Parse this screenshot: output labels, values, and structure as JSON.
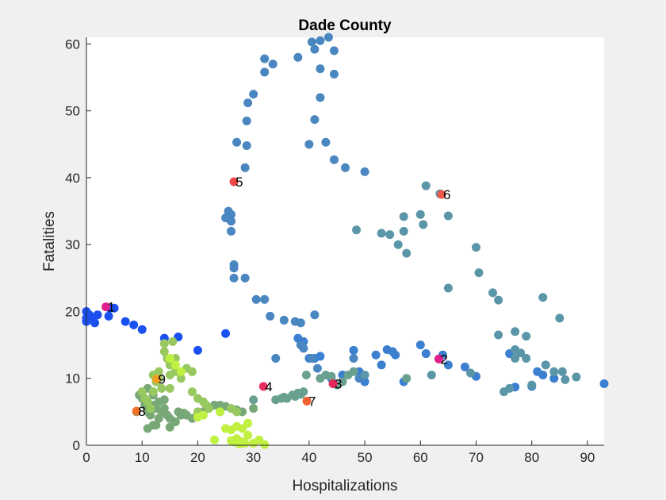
{
  "chart_data": {
    "type": "scatter",
    "title": "Dade County",
    "xlabel": "Hospitalizations",
    "ylabel": "Fatalities",
    "xlim": [
      0,
      93
    ],
    "ylim": [
      0,
      61
    ],
    "xticks": [
      0,
      10,
      20,
      30,
      40,
      50,
      60,
      70,
      80,
      90
    ],
    "yticks": [
      0,
      10,
      20,
      30,
      40,
      50,
      60
    ],
    "grid": false,
    "series": [
      {
        "color": "#1a4ff0",
        "points": [
          [
            0,
            20
          ],
          [
            0,
            19
          ],
          [
            0,
            18.5
          ],
          [
            0.5,
            19.5
          ],
          [
            1,
            19
          ],
          [
            1.5,
            18.3
          ],
          [
            2,
            19.5
          ],
          [
            4,
            19.3
          ],
          [
            4.2,
            20.5
          ],
          [
            5,
            20.5
          ],
          [
            7,
            18.5
          ],
          [
            8.5,
            18
          ],
          [
            10,
            17.3
          ],
          [
            14,
            16
          ],
          [
            16.5,
            16.2
          ],
          [
            20,
            14.2
          ],
          [
            25,
            16.7
          ]
        ]
      },
      {
        "color": "#3a7fd0",
        "points": [
          [
            38,
            16
          ],
          [
            39,
            15.5
          ],
          [
            40,
            13
          ],
          [
            41,
            13
          ],
          [
            42,
            13.3
          ],
          [
            44,
            10
          ],
          [
            46,
            10.5
          ],
          [
            48,
            14.2
          ],
          [
            49,
            11
          ],
          [
            50,
            9.5
          ],
          [
            52,
            13.5
          ],
          [
            53,
            12
          ],
          [
            54,
            14.3
          ],
          [
            55,
            14
          ],
          [
            55.5,
            13.5
          ],
          [
            57,
            9.5
          ],
          [
            60,
            15
          ],
          [
            61,
            13.7
          ],
          [
            64,
            13.5
          ],
          [
            65,
            12
          ],
          [
            68,
            11.7
          ],
          [
            70,
            10.3
          ],
          [
            76,
            13.7
          ],
          [
            77,
            8.7
          ],
          [
            80,
            8.8
          ],
          [
            81,
            11
          ],
          [
            82,
            10.5
          ],
          [
            84,
            10
          ],
          [
            93,
            9.2
          ]
        ]
      },
      {
        "color": "#4a86c0",
        "points": [
          [
            25,
            34
          ],
          [
            25.5,
            35
          ],
          [
            26,
            34.5
          ],
          [
            26,
            33.5
          ],
          [
            26,
            32
          ],
          [
            26.5,
            26.5
          ],
          [
            26.5,
            27
          ],
          [
            26.5,
            25
          ],
          [
            27,
            45.3
          ],
          [
            28.5,
            25
          ],
          [
            28.5,
            41.5
          ],
          [
            28.8,
            44.8
          ],
          [
            28.8,
            48.5
          ],
          [
            29,
            51.2
          ],
          [
            30,
            52.5
          ],
          [
            30.5,
            21.8
          ],
          [
            32,
            21.8
          ],
          [
            32,
            55.8
          ],
          [
            32,
            57.8
          ],
          [
            33,
            19.3
          ],
          [
            33.5,
            57
          ],
          [
            34,
            13
          ],
          [
            35.5,
            18.7
          ],
          [
            37.5,
            18.5
          ],
          [
            38,
            58
          ],
          [
            38.5,
            18.3
          ],
          [
            38.5,
            15
          ],
          [
            39,
            14.5
          ],
          [
            40,
            45
          ],
          [
            40.5,
            60.3
          ],
          [
            40.5,
            13
          ],
          [
            41,
            48.7
          ],
          [
            41,
            59.2
          ],
          [
            41,
            19.5
          ],
          [
            41.5,
            11.5
          ],
          [
            42,
            52
          ],
          [
            42,
            56.3
          ],
          [
            42,
            60.5
          ],
          [
            43,
            45.3
          ],
          [
            43.5,
            61
          ],
          [
            44.5,
            59
          ],
          [
            44.5,
            55.5
          ],
          [
            44.5,
            42.7
          ],
          [
            46.5,
            41.5
          ],
          [
            48,
            13
          ],
          [
            49,
            10
          ],
          [
            50,
            40.9
          ]
        ]
      },
      {
        "color": "#5a96a8",
        "points": [
          [
            48.5,
            32.2
          ],
          [
            50,
            10.5
          ],
          [
            53,
            31.7
          ],
          [
            54.5,
            31.5
          ],
          [
            56,
            30
          ],
          [
            57,
            34.2
          ],
          [
            57,
            32
          ],
          [
            57.5,
            28.7
          ],
          [
            60,
            34.5
          ],
          [
            60.5,
            33
          ],
          [
            61,
            38.8
          ],
          [
            62,
            10.5
          ],
          [
            63.5,
            37.6
          ],
          [
            65,
            34.3
          ],
          [
            65,
            23.5
          ],
          [
            69,
            10.8
          ],
          [
            70,
            29.6
          ],
          [
            70.5,
            25.8
          ],
          [
            73,
            22.8
          ],
          [
            74,
            21.7
          ],
          [
            74,
            16.5
          ],
          [
            75,
            8
          ],
          [
            76,
            8.5
          ],
          [
            77,
            17
          ],
          [
            77,
            14.3
          ],
          [
            77,
            13
          ],
          [
            78,
            13.8
          ],
          [
            79,
            16.3
          ],
          [
            79,
            13
          ],
          [
            80,
            9
          ],
          [
            82,
            22.1
          ],
          [
            82.5,
            12
          ],
          [
            84,
            11
          ],
          [
            85,
            19
          ],
          [
            85.5,
            11
          ],
          [
            86,
            9.8
          ],
          [
            88,
            10.2
          ]
        ]
      },
      {
        "color": "#6aa090",
        "points": [
          [
            34,
            6.8
          ],
          [
            35,
            7
          ],
          [
            35.5,
            7.2
          ],
          [
            36,
            7
          ],
          [
            37,
            7.5
          ],
          [
            37.5,
            7.3
          ],
          [
            38,
            7.8
          ],
          [
            38.5,
            7.6
          ],
          [
            39,
            8
          ],
          [
            39.5,
            10.5
          ],
          [
            42,
            10
          ],
          [
            43,
            10.5
          ],
          [
            44,
            10.3
          ],
          [
            45,
            9
          ],
          [
            46,
            9.5
          ],
          [
            47,
            10.5
          ],
          [
            48,
            11
          ],
          [
            57.5,
            10
          ],
          [
            30,
            6.8
          ]
        ]
      },
      {
        "color": "#78a878",
        "points": [
          [
            9,
            5
          ],
          [
            9.5,
            7.5
          ],
          [
            10,
            7
          ],
          [
            10.5,
            6
          ],
          [
            11,
            5
          ],
          [
            11,
            2.5
          ],
          [
            11,
            8.5
          ],
          [
            11.5,
            4.5
          ],
          [
            12,
            3
          ],
          [
            12,
            7.5
          ],
          [
            12,
            6
          ],
          [
            12.5,
            5.5
          ],
          [
            12.5,
            3
          ],
          [
            13,
            6.5
          ],
          [
            13,
            4
          ],
          [
            13.5,
            5
          ],
          [
            14,
            5.5
          ],
          [
            14,
            6.8
          ],
          [
            14.5,
            4.5
          ],
          [
            15,
            4
          ],
          [
            15,
            2.7
          ],
          [
            16,
            3.5
          ],
          [
            16.5,
            5
          ],
          [
            17,
            4.5
          ],
          [
            17.5,
            4.8
          ],
          [
            18,
            4.5
          ],
          [
            19,
            4
          ],
          [
            20,
            4.5
          ],
          [
            21,
            5
          ],
          [
            22,
            5.5
          ],
          [
            23,
            6
          ],
          [
            24,
            6
          ],
          [
            25,
            5.8
          ],
          [
            26,
            5.5
          ],
          [
            27,
            5.3
          ],
          [
            28,
            5
          ],
          [
            30,
            5.5
          ]
        ]
      },
      {
        "color": "#98c860",
        "points": [
          [
            10,
            8
          ],
          [
            10.5,
            7
          ],
          [
            11,
            6.5
          ],
          [
            11.5,
            5.5
          ],
          [
            12,
            10.5
          ],
          [
            12,
            8
          ],
          [
            12.5,
            9.5
          ],
          [
            13,
            11
          ],
          [
            13,
            10
          ],
          [
            13.5,
            8.5
          ],
          [
            14,
            15.2
          ],
          [
            14,
            14
          ],
          [
            14.5,
            13
          ],
          [
            15,
            12
          ],
          [
            15,
            10.5
          ],
          [
            15,
            8.5
          ],
          [
            15.5,
            15.5
          ],
          [
            16,
            13
          ],
          [
            16,
            11
          ],
          [
            17,
            10
          ],
          [
            18,
            11.5
          ],
          [
            19,
            8
          ],
          [
            20,
            7
          ],
          [
            21,
            6.5
          ],
          [
            21.5,
            6
          ],
          [
            22,
            5.5
          ],
          [
            20,
            5
          ],
          [
            24,
            5
          ],
          [
            26,
            5.5
          ],
          [
            27,
            5
          ],
          [
            19,
            11
          ]
        ]
      },
      {
        "color": "#c0f040",
        "points": [
          [
            15,
            13
          ],
          [
            16,
            12
          ],
          [
            17,
            11
          ],
          [
            20,
            4.2
          ],
          [
            21,
            4.5
          ],
          [
            23,
            0.8
          ],
          [
            24,
            5
          ],
          [
            26,
            0.7
          ],
          [
            26.5,
            0.5
          ],
          [
            27,
            1
          ],
          [
            27.5,
            0.2
          ],
          [
            28,
            0.5
          ],
          [
            28.5,
            0.3
          ],
          [
            29,
            3.3
          ],
          [
            29,
            1.5
          ],
          [
            30,
            0.3
          ],
          [
            31,
            0.8
          ],
          [
            32,
            0.1
          ],
          [
            25,
            2.5
          ],
          [
            26,
            2.3
          ],
          [
            27,
            2.8
          ],
          [
            28,
            2.5
          ]
        ]
      }
    ],
    "annotations": [
      {
        "label": "1",
        "x": 3.5,
        "y": 20.7,
        "color": "#e0208c"
      },
      {
        "label": "2",
        "x": 63.3,
        "y": 12.9,
        "color": "#e0208c"
      },
      {
        "label": "3",
        "x": 44.3,
        "y": 9.2,
        "color": "#e82858"
      },
      {
        "label": "4",
        "x": 31.8,
        "y": 8.8,
        "color": "#e83060"
      },
      {
        "label": "5",
        "x": 26.5,
        "y": 39.4,
        "color": "#f04848"
      },
      {
        "label": "6",
        "x": 63.8,
        "y": 37.5,
        "color": "#f05848"
      },
      {
        "label": "7",
        "x": 39.6,
        "y": 6.6,
        "color": "#f06030"
      },
      {
        "label": "8",
        "x": 9.0,
        "y": 5.1,
        "color": "#f07028"
      },
      {
        "label": "9",
        "x": 12.6,
        "y": 9.9,
        "color": "#f0a020"
      }
    ]
  }
}
